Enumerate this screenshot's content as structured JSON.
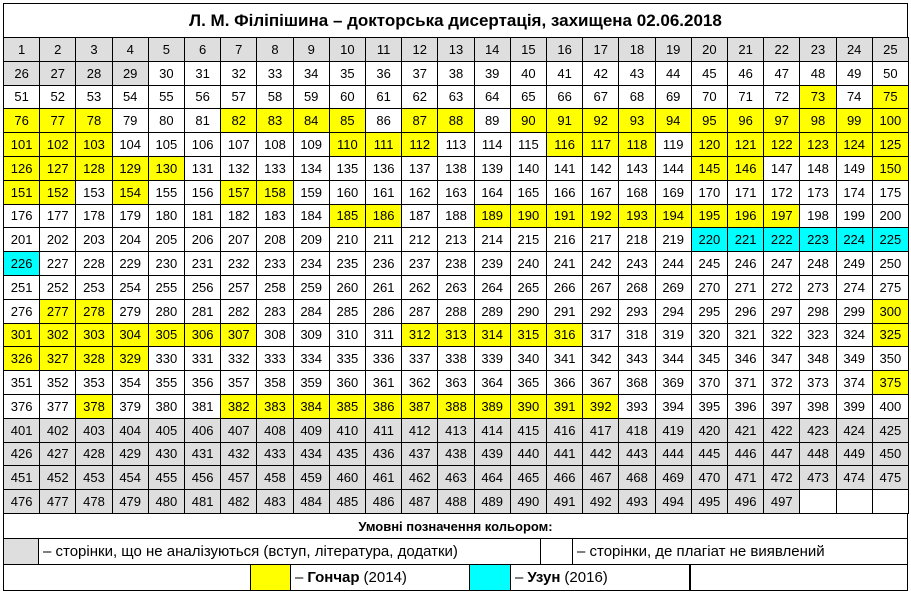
{
  "title": "Л. М. Філіпішина – докторська дисертація, захищена 02.06.2018",
  "table": {
    "rows": [
      [
        1,
        2,
        3,
        4,
        5,
        6,
        7,
        8,
        9,
        10,
        11,
        12,
        13,
        14,
        15,
        16,
        17,
        18,
        19,
        20,
        21,
        22,
        23,
        24,
        25
      ],
      [
        26,
        27,
        28,
        29,
        30,
        31,
        32,
        33,
        34,
        35,
        36,
        37,
        38,
        39,
        40,
        41,
        42,
        43,
        44,
        45,
        46,
        47,
        48,
        49,
        50
      ],
      [
        51,
        52,
        53,
        54,
        55,
        56,
        57,
        58,
        59,
        60,
        61,
        62,
        63,
        64,
        65,
        66,
        67,
        68,
        69,
        70,
        71,
        72,
        73,
        74,
        75
      ],
      [
        76,
        77,
        78,
        79,
        80,
        81,
        82,
        83,
        84,
        85,
        86,
        87,
        88,
        89,
        90,
        91,
        92,
        93,
        94,
        95,
        96,
        97,
        98,
        99,
        100
      ],
      [
        101,
        102,
        103,
        104,
        105,
        106,
        107,
        108,
        109,
        110,
        111,
        112,
        113,
        114,
        115,
        116,
        117,
        118,
        119,
        120,
        121,
        122,
        123,
        124,
        125
      ],
      [
        126,
        127,
        128,
        129,
        130,
        131,
        132,
        133,
        134,
        135,
        136,
        137,
        138,
        139,
        140,
        141,
        142,
        143,
        144,
        145,
        146,
        147,
        148,
        149,
        150
      ],
      [
        151,
        152,
        153,
        154,
        155,
        156,
        157,
        158,
        159,
        160,
        161,
        162,
        163,
        164,
        165,
        166,
        167,
        168,
        169,
        170,
        171,
        172,
        173,
        174,
        175
      ],
      [
        176,
        177,
        178,
        179,
        180,
        181,
        182,
        183,
        184,
        185,
        186,
        187,
        188,
        189,
        190,
        191,
        192,
        193,
        194,
        195,
        196,
        197,
        198,
        199,
        200
      ],
      [
        201,
        202,
        203,
        204,
        205,
        206,
        207,
        208,
        209,
        210,
        211,
        212,
        213,
        214,
        215,
        216,
        217,
        218,
        219,
        220,
        221,
        222,
        223,
        224,
        225
      ],
      [
        226,
        227,
        228,
        229,
        230,
        231,
        232,
        233,
        234,
        235,
        236,
        237,
        238,
        239,
        240,
        241,
        242,
        243,
        244,
        245,
        246,
        247,
        248,
        249,
        250
      ],
      [
        251,
        252,
        253,
        254,
        255,
        256,
        257,
        258,
        259,
        260,
        261,
        262,
        263,
        264,
        265,
        266,
        267,
        268,
        269,
        270,
        271,
        272,
        273,
        274,
        275
      ],
      [
        276,
        277,
        278,
        279,
        280,
        281,
        282,
        283,
        284,
        285,
        286,
        287,
        288,
        289,
        290,
        291,
        292,
        293,
        294,
        295,
        296,
        297,
        298,
        299,
        300
      ],
      [
        301,
        302,
        303,
        304,
        305,
        306,
        307,
        308,
        309,
        310,
        311,
        312,
        313,
        314,
        315,
        316,
        317,
        318,
        319,
        320,
        321,
        322,
        323,
        324,
        325
      ],
      [
        326,
        327,
        328,
        329,
        330,
        331,
        332,
        333,
        334,
        335,
        336,
        337,
        338,
        339,
        340,
        341,
        342,
        343,
        344,
        345,
        346,
        347,
        348,
        349,
        350
      ],
      [
        351,
        352,
        353,
        354,
        355,
        356,
        357,
        358,
        359,
        360,
        361,
        362,
        363,
        364,
        365,
        366,
        367,
        368,
        369,
        370,
        371,
        372,
        373,
        374,
        375
      ],
      [
        376,
        377,
        378,
        379,
        380,
        381,
        382,
        383,
        384,
        385,
        386,
        387,
        388,
        389,
        390,
        391,
        392,
        393,
        394,
        395,
        396,
        397,
        398,
        399,
        400
      ],
      [
        401,
        402,
        403,
        404,
        405,
        406,
        407,
        408,
        409,
        410,
        411,
        412,
        413,
        414,
        415,
        416,
        417,
        418,
        419,
        420,
        421,
        422,
        423,
        424,
        425
      ],
      [
        426,
        427,
        428,
        429,
        430,
        431,
        432,
        433,
        434,
        435,
        436,
        437,
        438,
        439,
        440,
        441,
        442,
        443,
        444,
        445,
        446,
        447,
        448,
        449,
        450
      ],
      [
        451,
        452,
        453,
        454,
        455,
        456,
        457,
        458,
        459,
        460,
        461,
        462,
        463,
        464,
        465,
        466,
        467,
        468,
        469,
        470,
        471,
        472,
        473,
        474,
        475
      ],
      [
        476,
        477,
        478,
        479,
        480,
        481,
        482,
        483,
        484,
        485,
        486,
        487,
        488,
        489,
        490,
        491,
        492,
        493,
        494,
        495,
        496,
        497
      ]
    ],
    "fills": [
      "0000000000000000000000000",
      "0000111111111111111111111",
      "1111111111111111111111212",
      "2221112222122122222222222",
      "2221111112221112221222222",
      "2222211111111111111221112",
      "2212112211111111111111111",
      "1111111112211222222222111",
      "1111111111111111111333333",
      "3111111111111111111111111",
      "1111111111111111111111111",
      "1221111111111111111111112",
      "2222222111122222111111112",
      "2222111111111111111111111",
      "1111111111111111111111112",
      "1121112222222222211111111",
      "0000000000000000000000000",
      "0000000000000000000000000",
      "0000000000000000000000000",
      "0000000000000000000000"
    ]
  },
  "legend": {
    "title": "Умовні позначення кольором:",
    "items": [
      {
        "color": "#dedede",
        "text": "– сторінки, що не аналізуються (вступ, література, додатки)"
      },
      {
        "color": "#ffffff",
        "text": "– сторінки, де плагіат не виявлений"
      },
      {
        "color": "#ffff00",
        "prefix": "–",
        "name": "Гончар",
        "text": "(2014)"
      },
      {
        "color": "#00ffff",
        "prefix": "–",
        "name": "Узун",
        "text": "(2016)"
      }
    ]
  }
}
